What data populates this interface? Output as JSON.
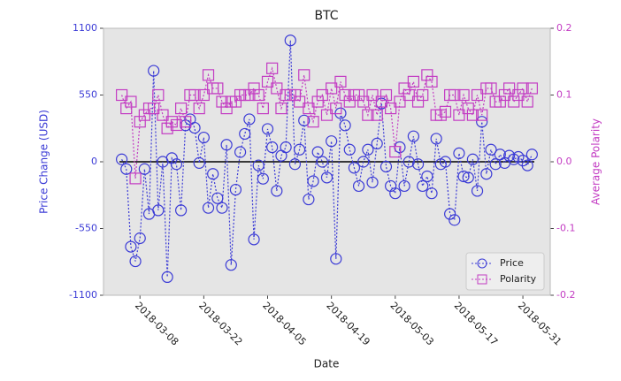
{
  "chart_data": {
    "type": "line",
    "title": "BTC",
    "x_label": "Date",
    "y_label": "Price Change (USD)",
    "y2_label": "Average Polarity",
    "x": [
      "2018-03-04",
      "2018-03-05",
      "2018-03-06",
      "2018-03-07",
      "2018-03-08",
      "2018-03-09",
      "2018-03-10",
      "2018-03-11",
      "2018-03-12",
      "2018-03-13",
      "2018-03-14",
      "2018-03-15",
      "2018-03-16",
      "2018-03-17",
      "2018-03-18",
      "2018-03-19",
      "2018-03-20",
      "2018-03-21",
      "2018-03-22",
      "2018-03-23",
      "2018-03-24",
      "2018-03-25",
      "2018-03-26",
      "2018-03-27",
      "2018-03-28",
      "2018-03-29",
      "2018-03-30",
      "2018-03-31",
      "2018-04-01",
      "2018-04-02",
      "2018-04-03",
      "2018-04-04",
      "2018-04-05",
      "2018-04-06",
      "2018-04-07",
      "2018-04-08",
      "2018-04-09",
      "2018-04-10",
      "2018-04-11",
      "2018-04-12",
      "2018-04-13",
      "2018-04-14",
      "2018-04-15",
      "2018-04-16",
      "2018-04-17",
      "2018-04-18",
      "2018-04-19",
      "2018-04-20",
      "2018-04-21",
      "2018-04-22",
      "2018-04-23",
      "2018-04-24",
      "2018-04-25",
      "2018-04-26",
      "2018-04-27",
      "2018-04-28",
      "2018-04-29",
      "2018-04-30",
      "2018-05-01",
      "2018-05-02",
      "2018-05-03",
      "2018-05-04",
      "2018-05-05",
      "2018-05-06",
      "2018-05-07",
      "2018-05-08",
      "2018-05-09",
      "2018-05-10",
      "2018-05-11",
      "2018-05-12",
      "2018-05-13",
      "2018-05-14",
      "2018-05-15",
      "2018-05-16",
      "2018-05-17",
      "2018-05-18",
      "2018-05-19",
      "2018-05-20",
      "2018-05-21",
      "2018-05-22",
      "2018-05-23",
      "2018-05-24",
      "2018-05-25",
      "2018-05-26",
      "2018-05-27",
      "2018-05-28",
      "2018-05-29",
      "2018-05-30",
      "2018-05-31",
      "2018-06-01",
      "2018-06-02"
    ],
    "series": [
      {
        "name": "Price",
        "color": "#3b3bd6",
        "marker": "circle",
        "values": [
          20,
          -60,
          -700,
          -820,
          -630,
          -60,
          -430,
          750,
          -400,
          0,
          -950,
          30,
          -20,
          -400,
          300,
          350,
          280,
          -10,
          200,
          -380,
          -100,
          -300,
          -380,
          140,
          -850,
          -230,
          80,
          230,
          350,
          -640,
          -30,
          -140,
          270,
          120,
          -240,
          50,
          120,
          1000,
          -20,
          100,
          340,
          -310,
          -160,
          80,
          0,
          -130,
          170,
          -800,
          400,
          300,
          100,
          -50,
          -200,
          0,
          100,
          -170,
          150,
          480,
          -40,
          -200,
          -260,
          120,
          -200,
          0,
          210,
          -20,
          -200,
          -120,
          -260,
          190,
          -20,
          0,
          -430,
          -480,
          70,
          -120,
          -130,
          20,
          -240,
          330,
          -100,
          100,
          -20,
          60,
          -10,
          50,
          20,
          40,
          10,
          -30,
          60
        ]
      },
      {
        "name": "Polarity",
        "color": "#c33cc3",
        "marker": "square",
        "axis": "y2",
        "values": [
          0.1,
          0.08,
          0.09,
          -0.025,
          0.06,
          0.07,
          0.08,
          0.08,
          0.1,
          0.07,
          0.05,
          0.06,
          0.055,
          0.08,
          0.06,
          0.1,
          0.1,
          0.08,
          0.1,
          0.13,
          0.11,
          0.11,
          0.09,
          0.08,
          0.09,
          0.09,
          0.1,
          0.1,
          0.1,
          0.11,
          0.1,
          0.08,
          0.12,
          0.14,
          0.11,
          0.08,
          0.1,
          0.1,
          0.1,
          0.09,
          0.13,
          0.08,
          0.06,
          0.09,
          0.1,
          0.07,
          0.11,
          0.08,
          0.12,
          0.1,
          0.09,
          0.1,
          0.1,
          0.09,
          0.07,
          0.1,
          0.07,
          0.09,
          0.1,
          0.08,
          0.015,
          0.09,
          0.11,
          0.1,
          0.12,
          0.09,
          0.1,
          0.13,
          0.12,
          0.07,
          0.07,
          0.075,
          0.1,
          0.1,
          0.07,
          0.1,
          0.08,
          0.07,
          0.1,
          0.07,
          0.11,
          0.11,
          0.09,
          0.09,
          0.1,
          0.11,
          0.09,
          0.1,
          0.11,
          0.09,
          0.11
        ]
      }
    ],
    "xlim": [
      "2018-02-28",
      "2018-06-06"
    ],
    "xticks": [
      "2018-03-08",
      "2018-03-22",
      "2018-04-05",
      "2018-04-19",
      "2018-05-03",
      "2018-05-17",
      "2018-05-31"
    ],
    "ylim": [
      -1100,
      1100
    ],
    "yticks": [
      -1100,
      -550,
      0,
      550,
      1100
    ],
    "y2lim": [
      -0.2,
      0.2
    ],
    "y2ticks": [
      -0.2,
      -0.1,
      {
        "value": 0,
        "label": "0.0"
      },
      0.1,
      0.2
    ],
    "legend": "lower right"
  }
}
